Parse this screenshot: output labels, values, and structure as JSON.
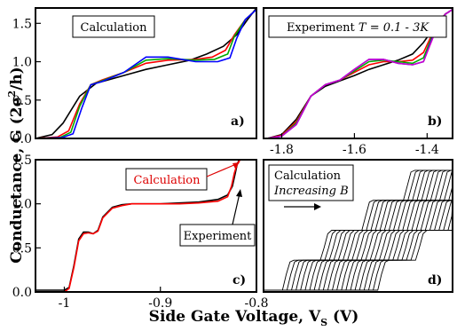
{
  "figure": {
    "ylabel": "Conductance, G (2e²/h)",
    "ylabel_main": "Conductance, G (2e",
    "ylabel_sup": "2",
    "ylabel_tail": "/h)",
    "xlabel_main": "Side Gate Voltage, V",
    "xlabel_sub": "S",
    "xlabel_tail": " (V)"
  },
  "panels": {
    "a": {
      "label": "a)",
      "annotation": "Calculation"
    },
    "b": {
      "label": "b)",
      "annotation_text": "Experiment ",
      "annotation_var": "T",
      "annotation_range": " = 0.1 - 3K"
    },
    "c": {
      "label": "c)",
      "calc_label": "Calculation",
      "exp_label": "Experiment"
    },
    "d": {
      "label": "d)",
      "annotation_line1": "Calculation",
      "annotation_line2": "Increasing B"
    }
  },
  "chart_data": [
    {
      "panel": "a",
      "type": "line",
      "title": "",
      "annotation": "Calculation",
      "xlim": [
        -1.0,
        1.0
      ],
      "ylim": [
        0.0,
        1.7
      ],
      "yticks": [
        "0.0",
        "0.5",
        "1.0",
        "1.5"
      ],
      "xticks": [],
      "series": [
        {
          "color": "#000000",
          "x": [
            -1.0,
            -0.85,
            -0.75,
            -0.6,
            -0.45,
            -0.3,
            -0.15,
            0,
            0.2,
            0.4,
            0.55,
            0.7,
            0.82,
            0.92,
            1.0
          ],
          "y": [
            0.0,
            0.05,
            0.2,
            0.55,
            0.72,
            0.78,
            0.84,
            0.9,
            0.96,
            1.02,
            1.1,
            1.2,
            1.35,
            1.55,
            1.7
          ]
        },
        {
          "color": "#ff0000",
          "x": [
            -1.0,
            -0.8,
            -0.7,
            -0.6,
            -0.5,
            -0.4,
            -0.2,
            0,
            0.2,
            0.45,
            0.6,
            0.72,
            0.8,
            0.9,
            1.0
          ],
          "y": [
            0.0,
            0.02,
            0.1,
            0.45,
            0.7,
            0.76,
            0.86,
            0.98,
            1.02,
            1.03,
            1.06,
            1.15,
            1.35,
            1.55,
            1.68
          ]
        },
        {
          "color": "#00aa00",
          "x": [
            -1.0,
            -0.78,
            -0.68,
            -0.6,
            -0.5,
            -0.4,
            -0.2,
            0,
            0.2,
            0.45,
            0.62,
            0.74,
            0.8,
            0.9,
            1.0
          ],
          "y": [
            0.0,
            0.01,
            0.08,
            0.42,
            0.7,
            0.75,
            0.86,
            1.02,
            1.04,
            1.02,
            1.03,
            1.1,
            1.33,
            1.55,
            1.68
          ]
        },
        {
          "color": "#0000ff",
          "x": [
            -1.0,
            -0.76,
            -0.66,
            -0.58,
            -0.5,
            -0.4,
            -0.2,
            0,
            0.2,
            0.45,
            0.65,
            0.76,
            0.82,
            0.9,
            1.0
          ],
          "y": [
            0.0,
            0.01,
            0.06,
            0.4,
            0.7,
            0.74,
            0.86,
            1.06,
            1.06,
            1.0,
            1.0,
            1.05,
            1.3,
            1.55,
            1.68
          ]
        }
      ]
    },
    {
      "panel": "b",
      "type": "line",
      "title": "",
      "annotation": "Experiment T = 0.1 - 3K",
      "xlim": [
        -1.85,
        -1.33
      ],
      "ylim": [
        0.0,
        1.7
      ],
      "xticks": [
        "-1.8",
        "-1.6",
        "-1.4"
      ],
      "xtick_values": [
        -1.8,
        -1.6,
        -1.4
      ],
      "yticks": [],
      "series": [
        {
          "color": "#000000",
          "x": [
            -1.84,
            -1.8,
            -1.76,
            -1.72,
            -1.68,
            -1.64,
            -1.6,
            -1.56,
            -1.52,
            -1.48,
            -1.44,
            -1.41,
            -1.38,
            -1.35,
            -1.33
          ],
          "y": [
            0.0,
            0.05,
            0.25,
            0.55,
            0.68,
            0.75,
            0.82,
            0.9,
            0.96,
            1.02,
            1.1,
            1.25,
            1.45,
            1.62,
            1.68
          ]
        },
        {
          "color": "#ff0000",
          "x": [
            -1.84,
            -1.8,
            -1.76,
            -1.72,
            -1.68,
            -1.64,
            -1.6,
            -1.56,
            -1.52,
            -1.48,
            -1.44,
            -1.41,
            -1.38,
            -1.35,
            -1.33
          ],
          "y": [
            0.0,
            0.04,
            0.22,
            0.55,
            0.7,
            0.76,
            0.86,
            0.96,
            1.0,
            1.0,
            1.02,
            1.12,
            1.42,
            1.62,
            1.68
          ]
        },
        {
          "color": "#00aa00",
          "x": [
            -1.84,
            -1.8,
            -1.76,
            -1.72,
            -1.68,
            -1.64,
            -1.6,
            -1.56,
            -1.52,
            -1.48,
            -1.44,
            -1.41,
            -1.38,
            -1.35,
            -1.33
          ],
          "y": [
            0.0,
            0.03,
            0.2,
            0.55,
            0.7,
            0.76,
            0.88,
            1.0,
            1.02,
            1.0,
            0.98,
            1.05,
            1.4,
            1.62,
            1.68
          ]
        },
        {
          "color": "#0000ff",
          "x": [
            -1.84,
            -1.8,
            -1.76,
            -1.72,
            -1.68,
            -1.64,
            -1.6,
            -1.56,
            -1.52,
            -1.48,
            -1.44,
            -1.41,
            -1.38,
            -1.35,
            -1.33
          ],
          "y": [
            0.0,
            0.03,
            0.18,
            0.55,
            0.7,
            0.76,
            0.9,
            1.03,
            1.03,
            0.98,
            0.96,
            1.0,
            1.38,
            1.62,
            1.68
          ]
        },
        {
          "color": "#cc00cc",
          "x": [
            -1.84,
            -1.8,
            -1.76,
            -1.72,
            -1.68,
            -1.64,
            -1.6,
            -1.56,
            -1.52,
            -1.48,
            -1.44,
            -1.41,
            -1.38,
            -1.35,
            -1.33
          ],
          "y": [
            0.0,
            0.03,
            0.18,
            0.55,
            0.7,
            0.76,
            0.9,
            1.03,
            1.03,
            0.98,
            0.96,
            1.0,
            1.36,
            1.62,
            1.68
          ]
        }
      ]
    },
    {
      "panel": "c",
      "type": "line",
      "title": "",
      "xlim": [
        -1.03,
        -0.8
      ],
      "ylim": [
        0.0,
        1.5
      ],
      "xticks": [
        "-1",
        "-0.9",
        "-0.8"
      ],
      "xtick_values": [
        -1.0,
        -0.9,
        -0.8
      ],
      "yticks": [
        "0.0",
        "0.5",
        "1.0",
        "1.5"
      ],
      "series": [
        {
          "name": "Experiment",
          "color": "#000000",
          "x": [
            -1.03,
            -1.0,
            -0.995,
            -0.99,
            -0.985,
            -0.98,
            -0.975,
            -0.97,
            -0.965,
            -0.96,
            -0.95,
            -0.94,
            -0.93,
            -0.92,
            -0.91,
            -0.9,
            -0.88,
            -0.86,
            -0.84,
            -0.83,
            -0.825,
            -0.822,
            -0.82,
            -0.818,
            -0.815
          ],
          "y": [
            0.02,
            0.02,
            0.05,
            0.3,
            0.6,
            0.68,
            0.68,
            0.66,
            0.7,
            0.85,
            0.96,
            0.99,
            1.0,
            1.0,
            1.0,
            1.0,
            1.01,
            1.02,
            1.05,
            1.1,
            1.2,
            1.35,
            1.45,
            1.5,
            1.5
          ]
        },
        {
          "name": "Calculation",
          "color": "#ff0000",
          "x": [
            -1.0,
            -0.995,
            -0.99,
            -0.985,
            -0.98,
            -0.975,
            -0.97,
            -0.965,
            -0.96,
            -0.95,
            -0.94,
            -0.93,
            -0.92,
            -0.91,
            -0.9,
            -0.88,
            -0.86,
            -0.84,
            -0.83,
            -0.826,
            -0.823,
            -0.82,
            -0.817
          ],
          "y": [
            0.0,
            0.04,
            0.28,
            0.58,
            0.66,
            0.67,
            0.66,
            0.69,
            0.84,
            0.95,
            0.98,
            1.0,
            1.0,
            1.0,
            1.0,
            1.0,
            1.01,
            1.03,
            1.08,
            1.2,
            1.35,
            1.45,
            1.5
          ]
        }
      ]
    },
    {
      "panel": "d",
      "type": "line",
      "title": "",
      "annotation": "Calculation Increasing B",
      "xlim": [
        0.0,
        1.0
      ],
      "ylim": [
        0.0,
        1.5
      ],
      "xticks": [],
      "yticks": [],
      "series_count": 22,
      "offset_step": 0.024,
      "base_curve": {
        "x": [
          0.0,
          0.1,
          0.12,
          0.14,
          0.16,
          0.3,
          0.32,
          0.34,
          0.36,
          0.52,
          0.54,
          0.56,
          0.58,
          0.74,
          0.76,
          0.78,
          0.8,
          1.0
        ],
        "y": [
          0.02,
          0.02,
          0.2,
          0.34,
          0.36,
          0.36,
          0.5,
          0.66,
          0.7,
          0.7,
          0.86,
          1.02,
          1.04,
          1.04,
          1.2,
          1.36,
          1.38,
          1.38
        ]
      }
    }
  ]
}
